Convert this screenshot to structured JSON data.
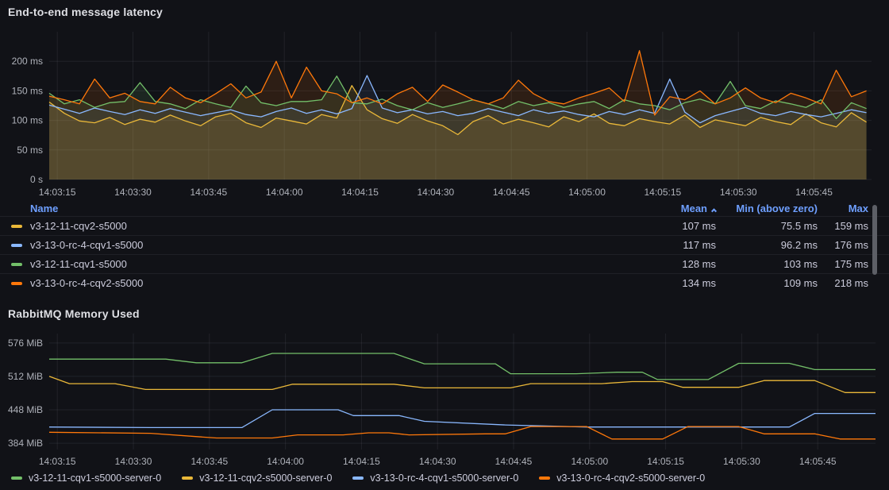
{
  "colors": {
    "background": "#111217",
    "grid": "rgba(204,204,220,0.09)",
    "axis_text": "#AFB2BA",
    "table_header_blue": "#6E9FFF",
    "text": "#CCCCDC",
    "yellow": "#EAB839",
    "blue": "#8AB8FF",
    "green": "#73BF69",
    "orange": "#FF780A"
  },
  "panels": [
    {
      "title": "End-to-end message latency"
    },
    {
      "title": "RabbitMQ Memory Used"
    }
  ],
  "latency_table": {
    "headers": {
      "name": "Name",
      "mean": "Mean",
      "min": "Min (above zero)",
      "max": "Max"
    },
    "sort_column": "Mean",
    "sort_direction": "ascending",
    "rows": [
      {
        "color": "#EAB839",
        "name": "v3-12-11-cqv2-s5000",
        "mean": "107 ms",
        "min": "75.5 ms",
        "max": "159 ms"
      },
      {
        "color": "#8AB8FF",
        "name": "v3-13-0-rc-4-cqv1-s5000",
        "mean": "117 ms",
        "min": "96.2 ms",
        "max": "176 ms"
      },
      {
        "color": "#73BF69",
        "name": "v3-12-11-cqv1-s5000",
        "mean": "128 ms",
        "min": "103 ms",
        "max": "175 ms"
      },
      {
        "color": "#FF780A",
        "name": "v3-13-0-rc-4-cqv2-s5000",
        "mean": "134 ms",
        "min": "109 ms",
        "max": "218 ms"
      }
    ]
  },
  "memory_legend": {
    "items": [
      {
        "color": "#73BF69",
        "label": "v3-12-11-cqv1-s5000-server-0"
      },
      {
        "color": "#EAB839",
        "label": "v3-12-11-cqv2-s5000-server-0"
      },
      {
        "color": "#8AB8FF",
        "label": "v3-13-0-rc-4-cqv1-s5000-server-0"
      },
      {
        "color": "#FF780A",
        "label": "v3-13-0-rc-4-cqv2-s5000-server-0"
      }
    ]
  },
  "chart_data": [
    {
      "type": "line",
      "title": "End-to-end message latency",
      "unit": "ms",
      "grid": true,
      "legend_position": "bottom-table",
      "x_domain": [
        0,
        163
      ],
      "y_domain": [
        0,
        250
      ],
      "y_ticks": [
        {
          "v": 0,
          "label": "0 s"
        },
        {
          "v": 50,
          "label": "50 ms"
        },
        {
          "v": 100,
          "label": "100 ms"
        },
        {
          "v": 150,
          "label": "150 ms"
        },
        {
          "v": 200,
          "label": "200 ms"
        }
      ],
      "x_ticks": [
        {
          "t": 1.6,
          "label": "14:03:15"
        },
        {
          "t": 16.6,
          "label": "14:03:30"
        },
        {
          "t": 31.6,
          "label": "14:03:45"
        },
        {
          "t": 46.6,
          "label": "14:04:00"
        },
        {
          "t": 61.6,
          "label": "14:04:15"
        },
        {
          "t": 76.6,
          "label": "14:04:30"
        },
        {
          "t": 91.6,
          "label": "14:04:45"
        },
        {
          "t": 106.6,
          "label": "14:05:00"
        },
        {
          "t": 121.6,
          "label": "14:05:15"
        },
        {
          "t": 136.6,
          "label": "14:05:30"
        },
        {
          "t": 151.6,
          "label": "14:05:45"
        }
      ],
      "series": [
        {
          "name": "v3-12-11-cqv2-s5000",
          "color": "#EAB839",
          "fill_opacity": 0.14,
          "x_start": 0,
          "x_step": 3,
          "values": [
            131,
            112,
            99,
            96,
            105,
            93,
            102,
            97,
            109,
            99,
            91,
            106,
            112,
            96,
            88,
            104,
            99,
            94,
            110,
            104,
            159,
            118,
            103,
            95,
            110,
            99,
            91,
            76,
            98,
            108,
            94,
            102,
            96,
            89,
            106,
            98,
            111,
            95,
            91,
            103,
            98,
            94,
            109,
            88,
            101,
            96,
            91,
            105,
            98,
            93,
            111,
            96,
            89,
            113,
            97
          ]
        },
        {
          "name": "v3-13-0-rc-4-cqv1-s5000",
          "color": "#8AB8FF",
          "fill_opacity": 0.08,
          "x_start": 0,
          "x_step": 3,
          "values": [
            126,
            119,
            112,
            121,
            115,
            110,
            118,
            112,
            120,
            114,
            108,
            113,
            118,
            110,
            106,
            115,
            121,
            112,
            118,
            111,
            120,
            176,
            121,
            113,
            118,
            111,
            115,
            108,
            112,
            120,
            114,
            108,
            118,
            112,
            116,
            110,
            106,
            115,
            110,
            118,
            112,
            170,
            114,
            96,
            108,
            115,
            122,
            112,
            108,
            115,
            110,
            106,
            112,
            118,
            113
          ]
        },
        {
          "name": "v3-12-11-cqv1-s5000",
          "color": "#73BF69",
          "fill_opacity": 0.12,
          "x_start": 0,
          "x_step": 3,
          "values": [
            146,
            128,
            135,
            122,
            130,
            132,
            164,
            132,
            128,
            120,
            135,
            128,
            122,
            158,
            130,
            125,
            132,
            132,
            135,
            175,
            130,
            128,
            136,
            125,
            118,
            130,
            122,
            128,
            135,
            128,
            120,
            132,
            125,
            130,
            122,
            128,
            132,
            120,
            135,
            128,
            125,
            118,
            130,
            136,
            128,
            166,
            125,
            120,
            133,
            128,
            122,
            135,
            103,
            130,
            120
          ]
        },
        {
          "name": "v3-13-0-rc-4-cqv2-s5000",
          "color": "#FF780A",
          "fill_opacity": 0.12,
          "x_start": 0,
          "x_step": 3,
          "values": [
            141,
            135,
            128,
            170,
            138,
            146,
            132,
            128,
            156,
            138,
            130,
            145,
            162,
            138,
            148,
            200,
            138,
            190,
            150,
            145,
            130,
            138,
            128,
            145,
            156,
            132,
            160,
            148,
            135,
            128,
            138,
            168,
            145,
            132,
            128,
            138,
            146,
            155,
            132,
            218,
            109,
            140,
            135,
            150,
            128,
            138,
            155,
            138,
            130,
            146,
            138,
            128,
            185,
            140,
            150
          ]
        }
      ],
      "stats": [
        {
          "name": "v3-12-11-cqv2-s5000",
          "mean_ms": 107,
          "min_ms": 75.5,
          "max_ms": 159
        },
        {
          "name": "v3-13-0-rc-4-cqv1-s5000",
          "mean_ms": 117,
          "min_ms": 96.2,
          "max_ms": 176
        },
        {
          "name": "v3-12-11-cqv1-s5000",
          "mean_ms": 128,
          "min_ms": 103,
          "max_ms": 175
        },
        {
          "name": "v3-13-0-rc-4-cqv2-s5000",
          "mean_ms": 134,
          "min_ms": 109,
          "max_ms": 218
        }
      ]
    },
    {
      "type": "line",
      "title": "RabbitMQ Memory Used",
      "unit": "MiB",
      "grid": true,
      "legend_position": "bottom",
      "x_domain": [
        0,
        163
      ],
      "y_domain": [
        372,
        594
      ],
      "y_ticks": [
        {
          "v": 384,
          "label": "384 MiB"
        },
        {
          "v": 448,
          "label": "448 MiB"
        },
        {
          "v": 512,
          "label": "512 MiB"
        },
        {
          "v": 576,
          "label": "576 MiB"
        }
      ],
      "x_ticks": [
        {
          "t": 1.6,
          "label": "14:03:15"
        },
        {
          "t": 16.6,
          "label": "14:03:30"
        },
        {
          "t": 31.6,
          "label": "14:03:45"
        },
        {
          "t": 46.6,
          "label": "14:04:00"
        },
        {
          "t": 61.6,
          "label": "14:04:15"
        },
        {
          "t": 76.6,
          "label": "14:04:30"
        },
        {
          "t": 91.6,
          "label": "14:04:45"
        },
        {
          "t": 106.6,
          "label": "14:05:00"
        },
        {
          "t": 121.6,
          "label": "14:05:15"
        },
        {
          "t": 136.6,
          "label": "14:05:30"
        },
        {
          "t": 151.6,
          "label": "14:05:45"
        }
      ],
      "series": [
        {
          "name": "v3-12-11-cqv1-s5000-server-0",
          "color": "#73BF69",
          "points": [
            [
              0,
              545
            ],
            [
              23,
              545
            ],
            [
              29,
              538
            ],
            [
              38,
              538
            ],
            [
              44,
              556
            ],
            [
              68,
              556
            ],
            [
              74,
              536
            ],
            [
              88,
              536
            ],
            [
              91,
              517
            ],
            [
              104,
              517
            ],
            [
              112,
              520
            ],
            [
              117,
              520
            ],
            [
              120,
              506
            ],
            [
              130,
              506
            ],
            [
              136,
              537
            ],
            [
              146,
              537
            ],
            [
              151,
              525
            ],
            [
              163,
              525
            ]
          ]
        },
        {
          "name": "v3-12-11-cqv2-s5000-server-0",
          "color": "#EAB839",
          "points": [
            [
              0,
              512
            ],
            [
              4,
              498
            ],
            [
              13,
              498
            ],
            [
              19,
              487
            ],
            [
              44,
              487
            ],
            [
              48,
              497
            ],
            [
              68,
              497
            ],
            [
              74,
              490
            ],
            [
              91,
              490
            ],
            [
              95,
              498
            ],
            [
              109,
              498
            ],
            [
              115,
              502
            ],
            [
              121,
              502
            ],
            [
              125,
              491
            ],
            [
              136,
              491
            ],
            [
              141,
              504
            ],
            [
              151,
              504
            ],
            [
              157,
              481
            ],
            [
              163,
              481
            ]
          ]
        },
        {
          "name": "v3-13-0-rc-4-cqv1-s5000-server-0",
          "color": "#8AB8FF",
          "points": [
            [
              0,
              415
            ],
            [
              20,
              414
            ],
            [
              38,
              414
            ],
            [
              44,
              448
            ],
            [
              57,
              448
            ],
            [
              60,
              437
            ],
            [
              69,
              437
            ],
            [
              74,
              426
            ],
            [
              90,
              419
            ],
            [
              106,
              415
            ],
            [
              146,
              415
            ],
            [
              151,
              441
            ],
            [
              163,
              441
            ]
          ]
        },
        {
          "name": "v3-13-0-rc-4-cqv2-s5000-server-0",
          "color": "#FF780A",
          "points": [
            [
              0,
              405
            ],
            [
              20,
              403
            ],
            [
              30,
              396
            ],
            [
              33,
              394
            ],
            [
              44,
              394
            ],
            [
              49,
              400
            ],
            [
              58,
              400
            ],
            [
              63,
              404
            ],
            [
              67,
              404
            ],
            [
              71,
              400
            ],
            [
              86,
              402
            ],
            [
              90,
              402
            ],
            [
              95,
              416
            ],
            [
              106,
              416
            ],
            [
              111,
              392
            ],
            [
              121,
              392
            ],
            [
              126,
              416
            ],
            [
              136,
              416
            ],
            [
              141,
              402
            ],
            [
              151,
              402
            ],
            [
              156,
              392
            ],
            [
              163,
              392
            ]
          ]
        }
      ]
    }
  ]
}
